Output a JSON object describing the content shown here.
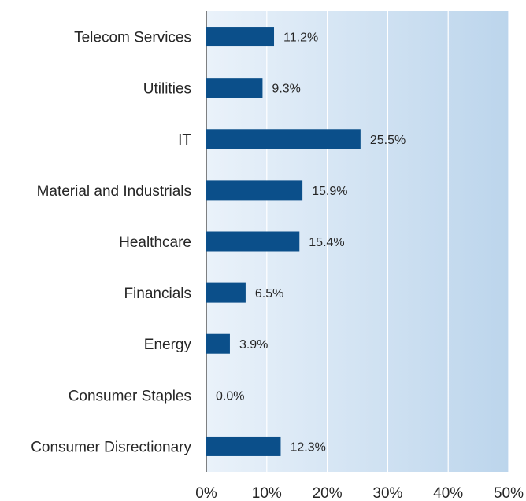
{
  "chart_data": {
    "type": "bar",
    "orientation": "horizontal",
    "categories": [
      "Telecom Services",
      "Utilities",
      "IT",
      "Material and Industrials",
      "Healthcare",
      "Financials",
      "Energy",
      "Consumer Staples",
      "Consumer Disrectionary"
    ],
    "values": [
      11.2,
      9.3,
      25.5,
      15.9,
      15.4,
      6.5,
      3.9,
      0.0,
      12.3
    ],
    "value_labels": [
      "11.2%",
      "9.3%",
      "25.5%",
      "15.9%",
      "15.4%",
      "6.5%",
      "3.9%",
      "0.0%",
      "12.3%"
    ],
    "x_ticks": [
      "0%",
      "10%",
      "20%",
      "30%",
      "40%",
      "50%"
    ],
    "xlim": [
      0,
      50
    ],
    "title": "",
    "xlabel": "",
    "ylabel": "",
    "grid": true,
    "legend": "none",
    "colors": {
      "bar": "#0b4f8a",
      "background_light": "#eaf2fa",
      "background_dark": "#bcd5ec",
      "gridline": "#ffffff",
      "axis": "#5a5a5a",
      "text": "#262626"
    }
  }
}
